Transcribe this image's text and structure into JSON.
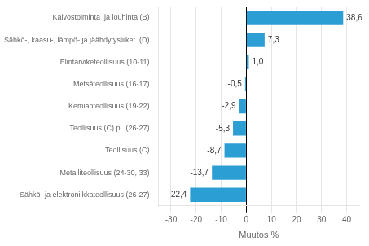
{
  "chart_data": {
    "type": "bar",
    "orientation": "horizontal",
    "categories": [
      "Sähkö- ja elektroniikkateollisuus (26-27)",
      "Metalliteollisuus (24-30, 33)",
      "Teollisuus (C)",
      "Teollisuus (C) pl. (26-27)",
      "Kemianteollisuus (19-22)",
      "Metsäteollisuus (16-17)",
      "Elintarviketeollisuus (10-11)",
      "Sähkö-, kaasu-, lämpö- ja jäähdytysliiket. (D)",
      "Kaivostoiminta  ja louhinta (B)"
    ],
    "values": [
      -22.4,
      -13.7,
      -8.7,
      -5.3,
      -2.9,
      -0.5,
      1.0,
      7.3,
      38.6
    ],
    "value_labels": [
      "-22,4",
      "-13,7",
      "-8,7",
      "-5,3",
      "-2,9",
      "-0,5",
      "1,0",
      "7,3",
      "38,6"
    ],
    "data_labels": true,
    "color": "#2B9ED4",
    "xlabel": "Muutos %",
    "xlim": [
      -35,
      45
    ],
    "xticks": [
      -30,
      -20,
      -10,
      0,
      10,
      20,
      30,
      40
    ],
    "grid": true
  }
}
